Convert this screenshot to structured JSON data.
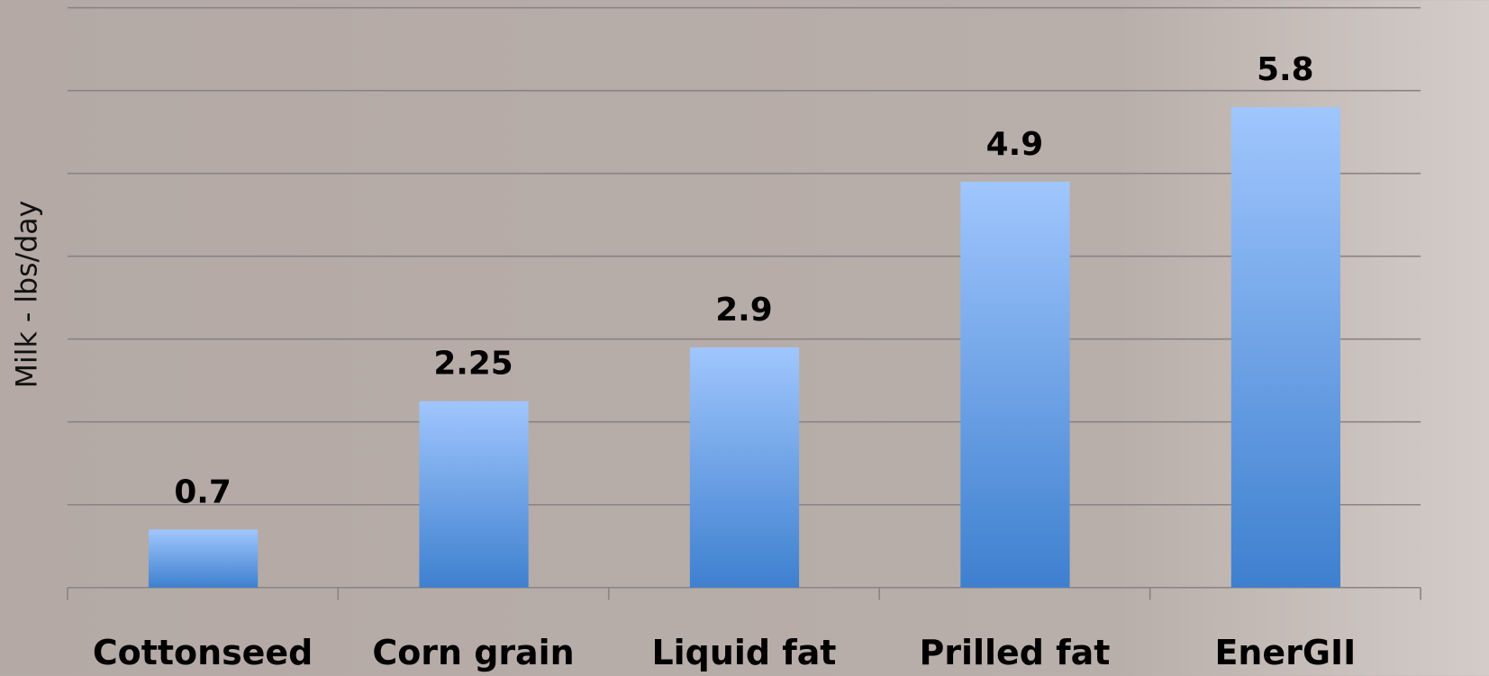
{
  "chart_data": {
    "type": "bar",
    "y_label": "Milk  - lbs/day",
    "categories": [
      "Cottonseed",
      "Corn grain",
      "Liquid fat",
      "Prilled fat",
      "EnerGII"
    ],
    "values": [
      0.7,
      2.25,
      2.9,
      4.9,
      5.8
    ],
    "color": "#5b95e0",
    "ylim": [
      0,
      7
    ],
    "yticks": [
      0,
      1,
      2,
      3,
      4,
      5,
      6,
      7
    ],
    "grid": true
  }
}
